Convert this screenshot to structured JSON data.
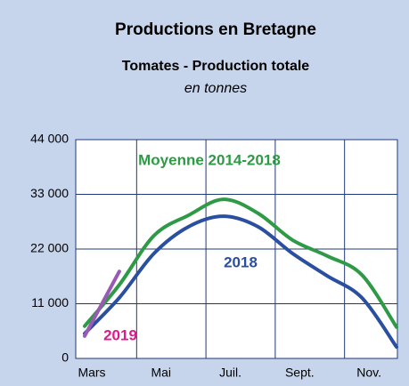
{
  "chart_data": {
    "type": "line",
    "title": "Productions en Bretagne",
    "subtitle": "Tomates - Production totale",
    "unit": "en tonnes",
    "categories": [
      "Mars",
      null,
      "Mai",
      null,
      "Juil.",
      null,
      "Sept.",
      null,
      "Nov.",
      null
    ],
    "series": [
      {
        "name": "Moyenne 2014-2018",
        "color": "#2e9a45",
        "values": [
          6500,
          14800,
          24700,
          28800,
          32000,
          29200,
          23800,
          20600,
          16800,
          6300
        ]
      },
      {
        "name": "2018",
        "color": "#2b4fa0",
        "label_color": "#2b4fa0",
        "values": [
          5000,
          12200,
          21100,
          26500,
          28600,
          26500,
          21100,
          16600,
          12200,
          2300
        ]
      },
      {
        "name": "2019",
        "color": "#9b59b6",
        "label_color": "#e0198a",
        "values": [
          4500,
          17500,
          null,
          null,
          null,
          null,
          null,
          null,
          null,
          null
        ]
      }
    ],
    "ylim": [
      0,
      44000
    ],
    "yticks": [
      {
        "value": 0,
        "label": "0"
      },
      {
        "value": 11000,
        "label": "11 000"
      },
      {
        "value": 22000,
        "label": "22 000"
      },
      {
        "value": 33000,
        "label": "33 000"
      },
      {
        "value": 44000,
        "label": "44 000"
      }
    ],
    "grid": true
  }
}
